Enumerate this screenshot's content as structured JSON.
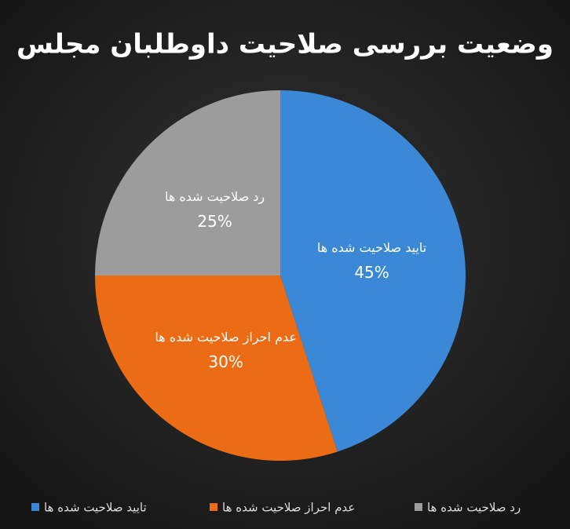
{
  "chart_data": {
    "type": "pie",
    "title": "وضعیت بررسی صلاحیت داوطلبان مجلس",
    "categories": [
      "تایید صلاحیت شده ها",
      "عدم احراز صلاحیت شده ها",
      "رد صلاحیت شده ها"
    ],
    "values": [
      45,
      30,
      25
    ],
    "value_labels": [
      "45%",
      "30%",
      "25%"
    ],
    "colors": [
      "#3b88d6",
      "#ec6b15",
      "#9c9c9c"
    ],
    "legend": "bottom"
  }
}
